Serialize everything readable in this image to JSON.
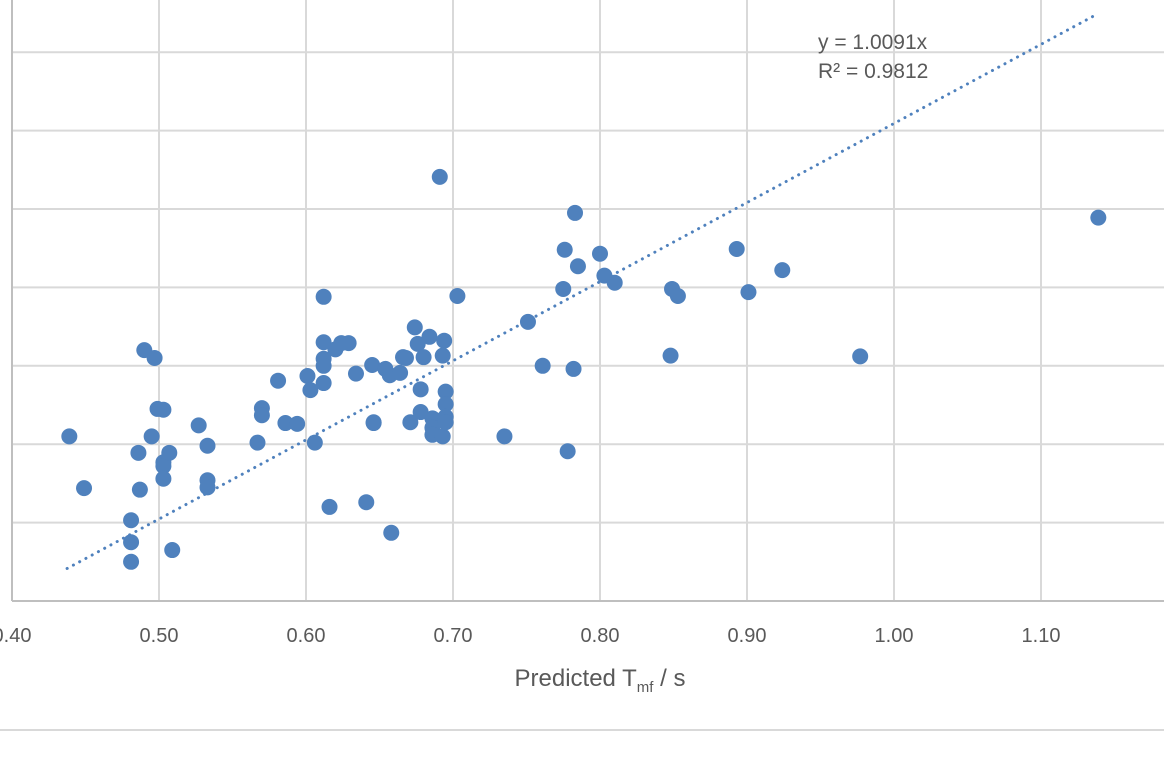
{
  "chart_data": {
    "type": "scatter",
    "title": "",
    "xlabel": {
      "main": "Predicted T",
      "sub": "mf",
      "suffix": " / s"
    },
    "ylabel": "",
    "xlim": [
      0.4,
      1.184
    ],
    "ylim": [
      0.4,
      1.167
    ],
    "x_ticks": [
      0.4,
      0.5,
      0.6,
      0.7,
      0.8,
      0.9,
      1.0,
      1.1
    ],
    "x_tick_labels": [
      "0.40",
      "0.50",
      "0.60",
      "0.70",
      "0.80",
      "0.90",
      "1.00",
      "1.10"
    ],
    "y_gridlines": [
      0.5,
      0.6,
      0.7,
      0.8,
      0.9,
      1.0,
      1.1
    ],
    "grid": true,
    "legend": "none",
    "series_color": "#4f81bd",
    "trendline": {
      "type": "linear-through-origin",
      "slope": 1.0091,
      "x_range": [
        0.4375,
        1.137
      ],
      "style": "dotted",
      "equation": "y = 1.0091x",
      "r_squared": "R² = 0.9812"
    },
    "points": [
      [
        0.439,
        0.61
      ],
      [
        0.449,
        0.544
      ],
      [
        0.481,
        0.503
      ],
      [
        0.481,
        0.475
      ],
      [
        0.481,
        0.45
      ],
      [
        0.486,
        0.589
      ],
      [
        0.487,
        0.542
      ],
      [
        0.49,
        0.72
      ],
      [
        0.495,
        0.61
      ],
      [
        0.497,
        0.71
      ],
      [
        0.499,
        0.645
      ],
      [
        0.503,
        0.644
      ],
      [
        0.503,
        0.577
      ],
      [
        0.503,
        0.572
      ],
      [
        0.503,
        0.556
      ],
      [
        0.507,
        0.589
      ],
      [
        0.509,
        0.465
      ],
      [
        0.527,
        0.624
      ],
      [
        0.533,
        0.598
      ],
      [
        0.533,
        0.554
      ],
      [
        0.533,
        0.545
      ],
      [
        0.567,
        0.602
      ],
      [
        0.57,
        0.646
      ],
      [
        0.57,
        0.637
      ],
      [
        0.581,
        0.681
      ],
      [
        0.586,
        0.627
      ],
      [
        0.594,
        0.626
      ],
      [
        0.601,
        0.687
      ],
      [
        0.603,
        0.669
      ],
      [
        0.606,
        0.602
      ],
      [
        0.612,
        0.788
      ],
      [
        0.612,
        0.73
      ],
      [
        0.612,
        0.709
      ],
      [
        0.612,
        0.7
      ],
      [
        0.612,
        0.678
      ],
      [
        0.616,
        0.52
      ],
      [
        0.62,
        0.721
      ],
      [
        0.624,
        0.729
      ],
      [
        0.629,
        0.729
      ],
      [
        0.634,
        0.69
      ],
      [
        0.641,
        0.526
      ],
      [
        0.645,
        0.701
      ],
      [
        0.646,
        0.627
      ],
      [
        0.646,
        0.628
      ],
      [
        0.654,
        0.696
      ],
      [
        0.657,
        0.688
      ],
      [
        0.658,
        0.487
      ],
      [
        0.664,
        0.691
      ],
      [
        0.666,
        0.711
      ],
      [
        0.668,
        0.71
      ],
      [
        0.671,
        0.628
      ],
      [
        0.674,
        0.749
      ],
      [
        0.676,
        0.728
      ],
      [
        0.678,
        0.641
      ],
      [
        0.678,
        0.67
      ],
      [
        0.68,
        0.711
      ],
      [
        0.684,
        0.737
      ],
      [
        0.686,
        0.633
      ],
      [
        0.686,
        0.621
      ],
      [
        0.686,
        0.612
      ],
      [
        0.691,
        0.941
      ],
      [
        0.693,
        0.61
      ],
      [
        0.694,
        0.732
      ],
      [
        0.693,
        0.713
      ],
      [
        0.695,
        0.667
      ],
      [
        0.695,
        0.651
      ],
      [
        0.695,
        0.635
      ],
      [
        0.695,
        0.628
      ],
      [
        0.703,
        0.789
      ],
      [
        0.735,
        0.61
      ],
      [
        0.751,
        0.756
      ],
      [
        0.761,
        0.7
      ],
      [
        0.775,
        0.798
      ],
      [
        0.776,
        0.848
      ],
      [
        0.778,
        0.591
      ],
      [
        0.782,
        0.696
      ],
      [
        0.783,
        0.895
      ],
      [
        0.785,
        0.827
      ],
      [
        0.8,
        0.843
      ],
      [
        0.803,
        0.815
      ],
      [
        0.81,
        0.806
      ],
      [
        0.848,
        0.713
      ],
      [
        0.849,
        0.798
      ],
      [
        0.853,
        0.789
      ],
      [
        0.893,
        0.849
      ],
      [
        0.901,
        0.794
      ],
      [
        0.924,
        0.822
      ],
      [
        0.977,
        0.712
      ],
      [
        1.139,
        0.889
      ]
    ]
  }
}
